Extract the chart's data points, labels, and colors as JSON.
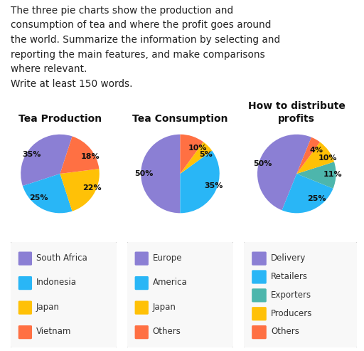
{
  "title_text": "The three pie charts show the production and\nconsumption of tea and where the profit goes around\nthe world. Summarize the information by selecting and\nreporting the main features, and make comparisons\nwhere relevant.\nWrite at least 150 words.",
  "pie1": {
    "title": "Tea Production",
    "values": [
      35,
      25,
      22,
      18
    ],
    "labels": [
      "35%",
      "25%",
      "22%",
      "18%"
    ],
    "colors": [
      "#8B7FD4",
      "#29B6F6",
      "#FFC107",
      "#FF7043"
    ],
    "legend": [
      "South Africa",
      "Indonesia",
      "Japan",
      "Vietnam"
    ],
    "startangle": 72
  },
  "pie2": {
    "title": "Tea Consumption",
    "values": [
      50,
      35,
      5,
      10
    ],
    "labels": [
      "50%",
      "35%",
      "5%",
      "10%"
    ],
    "colors": [
      "#8B7FD4",
      "#29B6F6",
      "#FFC107",
      "#FF7043"
    ],
    "legend": [
      "Europe",
      "America",
      "Japan",
      "Others"
    ],
    "startangle": 90
  },
  "pie3": {
    "title": "How to distribute\nprofits",
    "values": [
      50,
      25,
      11,
      10,
      4
    ],
    "labels": [
      "50%",
      "25%",
      "11%",
      "10%",
      "4%"
    ],
    "colors": [
      "#8B7FD4",
      "#29B6F6",
      "#4DB6AC",
      "#FFC107",
      "#FF7043"
    ],
    "legend": [
      "Delivery",
      "Retailers",
      "Exporters",
      "Producers",
      "Others"
    ],
    "startangle": 68
  },
  "background_color": "#FFFFFF",
  "title_fontsize": 9.8,
  "pie_title_fontsize": 10,
  "label_fontsize": 8,
  "legend_fontsize": 8.5
}
